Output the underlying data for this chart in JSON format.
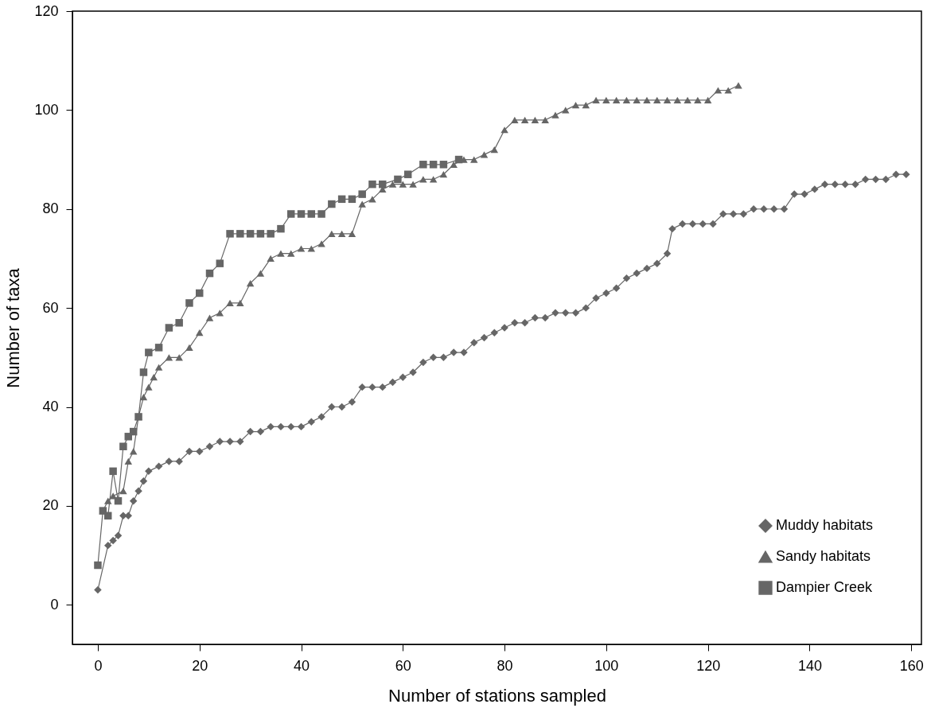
{
  "chart_data": {
    "type": "line",
    "xlabel": "Number of stations sampled",
    "ylabel": "Number of taxa",
    "xlim": [
      -5,
      162
    ],
    "ylim": [
      -8,
      120
    ],
    "xticks": [
      0,
      20,
      40,
      60,
      80,
      100,
      120,
      140,
      160
    ],
    "yticks": [
      0,
      20,
      40,
      60,
      80,
      100,
      120
    ],
    "grid": false,
    "legend": "bottom right",
    "line_style": "solid",
    "series": [
      {
        "name": "Muddy habitats",
        "color": "#666666",
        "marker": "diamond",
        "x": [
          0,
          2,
          3,
          4,
          5,
          6,
          7,
          8,
          9,
          10,
          12,
          14,
          16,
          18,
          20,
          22,
          24,
          26,
          28,
          30,
          32,
          34,
          36,
          38,
          40,
          42,
          44,
          46,
          48,
          50,
          52,
          54,
          56,
          58,
          60,
          62,
          64,
          66,
          68,
          70,
          72,
          74,
          76,
          78,
          80,
          82,
          84,
          86,
          88,
          90,
          92,
          94,
          96,
          98,
          100,
          102,
          104,
          106,
          108,
          110,
          112,
          113,
          115,
          117,
          119,
          121,
          123,
          125,
          127,
          129,
          131,
          133,
          135,
          137,
          139,
          141,
          143,
          145,
          147,
          149,
          151,
          153,
          155,
          157,
          159
        ],
        "values": [
          3,
          12,
          13,
          14,
          18,
          18,
          21,
          23,
          25,
          27,
          28,
          29,
          29,
          31,
          31,
          32,
          33,
          33,
          33,
          35,
          35,
          36,
          36,
          36,
          36,
          37,
          38,
          40,
          40,
          41,
          44,
          44,
          44,
          45,
          46,
          47,
          49,
          50,
          50,
          51,
          51,
          53,
          54,
          55,
          56,
          57,
          57,
          58,
          58,
          59,
          59,
          59,
          60,
          62,
          63,
          64,
          66,
          67,
          68,
          69,
          71,
          76,
          77,
          77,
          77,
          77,
          79,
          79,
          79,
          80,
          80,
          80,
          80,
          83,
          83,
          84,
          85,
          85,
          85,
          85,
          86,
          86,
          86,
          87,
          87
        ]
      },
      {
        "name": "Sandy habitats",
        "color": "#666666",
        "marker": "triangle",
        "x": [
          1,
          2,
          3,
          5,
          6,
          7,
          8,
          9,
          10,
          11,
          12,
          14,
          16,
          18,
          20,
          22,
          24,
          26,
          28,
          30,
          32,
          34,
          36,
          38,
          40,
          42,
          44,
          46,
          48,
          50,
          52,
          54,
          56,
          58,
          60,
          62,
          64,
          66,
          68,
          70,
          72,
          74,
          76,
          78,
          80,
          82,
          84,
          86,
          88,
          90,
          92,
          94,
          96,
          98,
          100,
          102,
          104,
          106,
          108,
          110,
          112,
          114,
          116,
          118,
          120,
          122,
          124,
          126
        ],
        "values": [
          19,
          21,
          22,
          23,
          29,
          31,
          38,
          42,
          44,
          46,
          48,
          50,
          50,
          52,
          55,
          58,
          59,
          61,
          61,
          65,
          67,
          70,
          71,
          71,
          72,
          72,
          73,
          75,
          75,
          75,
          81,
          82,
          84,
          85,
          85,
          85,
          86,
          86,
          87,
          89,
          90,
          90,
          91,
          92,
          96,
          98,
          98,
          98,
          98,
          99,
          100,
          101,
          101,
          102,
          102,
          102,
          102,
          102,
          102,
          102,
          102,
          102,
          102,
          102,
          102,
          104,
          104,
          105
        ]
      },
      {
        "name": "Dampier Creek",
        "color": "#666666",
        "marker": "square",
        "x": [
          0,
          1,
          2,
          3,
          4,
          5,
          6,
          7,
          8,
          9,
          10,
          12,
          14,
          16,
          18,
          20,
          22,
          24,
          26,
          28,
          30,
          32,
          34,
          36,
          38,
          40,
          42,
          44,
          46,
          48,
          50,
          52,
          54,
          56,
          59,
          61,
          64,
          66,
          68,
          71
        ],
        "values": [
          8,
          19,
          18,
          27,
          21,
          32,
          34,
          35,
          38,
          47,
          51,
          52,
          56,
          57,
          61,
          63,
          67,
          69,
          75,
          75,
          75,
          75,
          75,
          76,
          79,
          79,
          79,
          79,
          81,
          82,
          82,
          83,
          85,
          85,
          86,
          87,
          89,
          89,
          89,
          90
        ]
      }
    ]
  }
}
